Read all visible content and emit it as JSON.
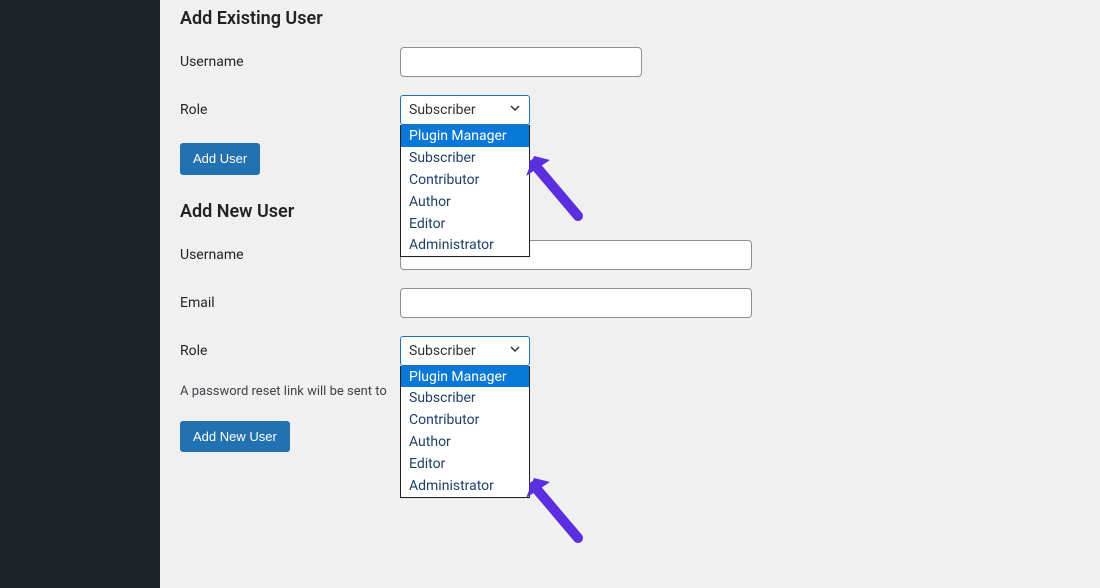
{
  "colors": {
    "sidebar_bg": "#1d2327",
    "page_bg": "#f0f0f1",
    "text": "#1d2327",
    "input_border": "#8c8f94",
    "select_border": "#2271b1",
    "dropdown_border": "#1d2327",
    "option_text": "#1d3f66",
    "option_selected_bg": "#0a78d6",
    "option_selected_text": "#ffffff",
    "button_bg": "#2271b1",
    "button_text": "#ffffff",
    "arrow_color": "#5b2ee0"
  },
  "existing": {
    "heading": "Add Existing User",
    "username_label": "Username",
    "username_value": "",
    "role_label": "Role",
    "role_selected": "Subscriber",
    "role_options": [
      "Plugin Manager",
      "Subscriber",
      "Contributor",
      "Author",
      "Editor",
      "Administrator"
    ],
    "role_highlight_index": 0,
    "submit_label": "Add User"
  },
  "new": {
    "heading": "Add New User",
    "username_label": "Username",
    "username_value": "",
    "email_label": "Email",
    "email_value": "",
    "role_label": "Role",
    "role_selected": "Subscriber",
    "role_options": [
      "Plugin Manager",
      "Subscriber",
      "Contributor",
      "Author",
      "Editor",
      "Administrator"
    ],
    "role_highlight_index": 0,
    "helper_text": "A password reset link will be sent to",
    "submit_label": "Add New User"
  },
  "annotation": {
    "arrow_color": "#5b2ee0",
    "arrow_stroke_width": 10
  }
}
